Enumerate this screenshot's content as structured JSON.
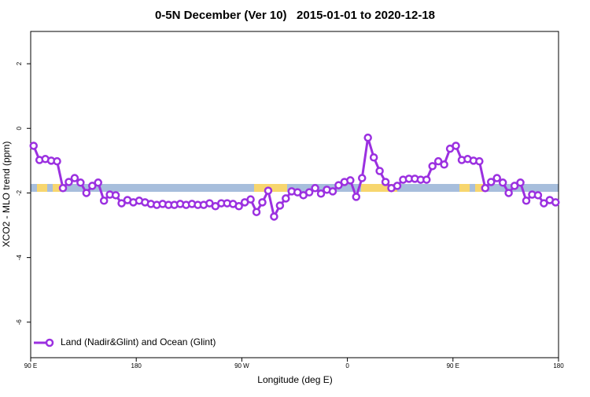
{
  "chart_data": {
    "type": "line",
    "title": "0-5N December (Ver 10)   2015-01-01 to 2020-12-18",
    "x_label": "Longitude (deg E)",
    "y_label": "XCO2 - MLO trend (ppm)",
    "x": [
      92.5,
      97.5,
      102.5,
      107.5,
      112.5,
      117.5,
      122.5,
      127.5,
      132.5,
      137.5,
      142.5,
      147.5,
      152.5,
      157.5,
      162.5,
      167.5,
      172.5,
      177.5,
      182.5,
      187.5,
      192.5,
      197.5,
      202.5,
      207.5,
      212.5,
      217.5,
      222.5,
      227.5,
      232.5,
      237.5,
      242.5,
      247.5,
      252.5,
      257.5,
      262.5,
      267.5,
      272.5,
      277.5,
      282.5,
      287.5,
      292.5,
      297.5,
      302.5,
      307.5,
      312.5,
      317.5,
      322.5,
      327.5,
      332.5,
      337.5,
      342.5,
      347.5,
      352.5,
      357.5,
      362.5,
      367.5,
      372.5,
      377.5,
      382.5,
      387.5,
      392.5,
      397.5,
      402.5,
      407.5,
      412.5,
      417.5,
      422.5,
      427.5,
      432.5,
      437.5,
      442.5,
      447.5,
      452.5,
      457.5,
      462.5,
      467.5,
      472.5,
      477.5,
      482.5,
      487.5,
      492.5,
      497.5,
      502.5,
      507.5,
      512.5,
      517.5,
      522.5,
      527.5,
      532.5,
      537.5
    ],
    "series": [
      {
        "name": "Land (Nadir&Glint) and Ocean (Glint)",
        "color": "#9b30e0",
        "values": [
          -0.54,
          -0.98,
          -0.95,
          -1.0,
          -1.02,
          -1.85,
          -1.66,
          -1.54,
          -1.68,
          -2.0,
          -1.78,
          -1.68,
          -2.24,
          -2.05,
          -2.07,
          -2.32,
          -2.22,
          -2.29,
          -2.24,
          -2.29,
          -2.34,
          -2.37,
          -2.34,
          -2.37,
          -2.37,
          -2.34,
          -2.37,
          -2.34,
          -2.37,
          -2.37,
          -2.32,
          -2.41,
          -2.32,
          -2.32,
          -2.34,
          -2.41,
          -2.29,
          -2.2,
          -2.59,
          -2.29,
          -1.93,
          -2.73,
          -2.39,
          -2.17,
          -1.95,
          -1.98,
          -2.07,
          -1.98,
          -1.85,
          -2.02,
          -1.9,
          -1.95,
          -1.76,
          -1.66,
          -1.61,
          -2.12,
          -1.54,
          -0.29,
          -0.9,
          -1.32,
          -1.66,
          -1.85,
          -1.78,
          -1.59,
          -1.56,
          -1.56,
          -1.59,
          -1.59,
          -1.17,
          -1.02,
          -1.12,
          -0.63,
          -0.54,
          -0.98,
          -0.95,
          -1.0,
          -1.02,
          -1.85,
          -1.66,
          -1.54,
          -1.68,
          -2.0,
          -1.78,
          -1.68,
          -2.24,
          -2.05,
          -2.07,
          -2.32,
          -2.22,
          -2.29
        ]
      }
    ],
    "xlim": [
      90,
      540
    ],
    "xticks": [
      {
        "value": 90,
        "label": "90 E"
      },
      180,
      {
        "value": 270,
        "label": "90 W"
      },
      {
        "value": 360,
        "label": "0"
      },
      {
        "value": 450,
        "label": "90 E"
      },
      {
        "value": 540,
        "label": "180"
      }
    ],
    "ylim": [
      -7.1,
      3.0
    ],
    "yticks": [
      -6,
      -4,
      -2,
      0,
      2
    ],
    "legend": "bottom-left"
  }
}
